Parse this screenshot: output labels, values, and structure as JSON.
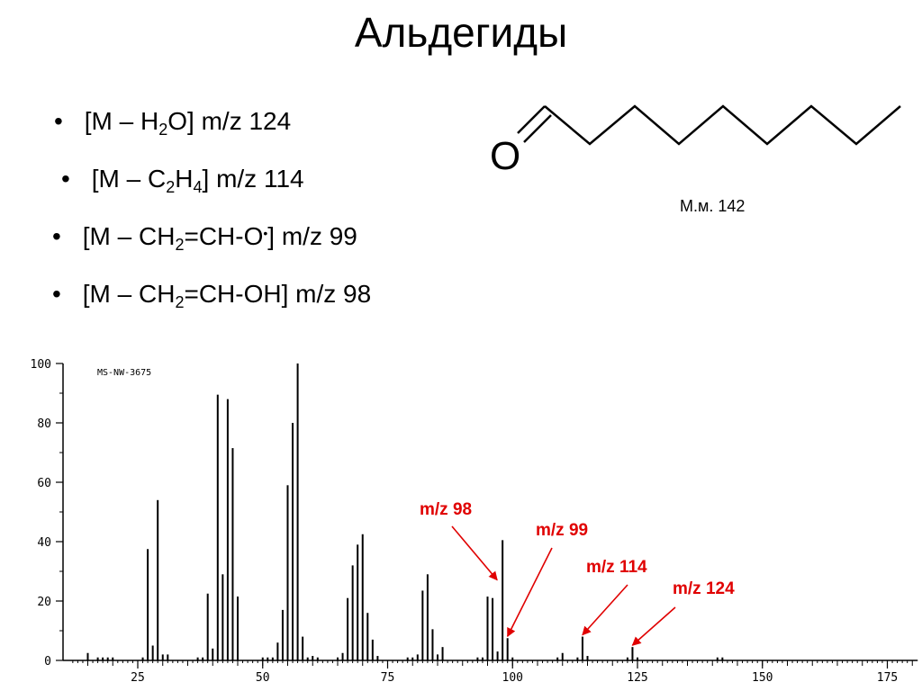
{
  "title": "Альдегиды",
  "bullets": [
    {
      "bullet": "•",
      "parts": [
        "[M – H",
        "2",
        "O] m/z 124"
      ]
    },
    {
      "bullet": "•",
      "parts": [
        "[M – C",
        "2",
        "H",
        "4",
        "] m/z 114"
      ]
    },
    {
      "bullet": "•",
      "parts": [
        "[M – CH",
        "2",
        "=CH-O",
        "•",
        "] m/z 99"
      ]
    },
    {
      "bullet": "•",
      "parts": [
        "[M – CH",
        "2",
        "=CH-OH] m/z 98"
      ]
    }
  ],
  "molecule": {
    "atom_label": "O",
    "molar_mass": "М.м. 142"
  },
  "chart_data": {
    "type": "bar",
    "subtitle": "MS-NW-3675",
    "xlim": [
      12,
      180
    ],
    "ylim": [
      0,
      100
    ],
    "xticks": [
      25,
      50,
      75,
      100,
      125,
      150,
      175
    ],
    "yticks": [
      0,
      20,
      40,
      60,
      80,
      100
    ],
    "grid": false,
    "x": [
      15,
      17,
      18,
      19,
      20,
      26,
      27,
      28,
      29,
      30,
      31,
      37,
      38,
      39,
      40,
      41,
      42,
      43,
      44,
      45,
      50,
      51,
      52,
      53,
      54,
      55,
      56,
      57,
      58,
      59,
      60,
      61,
      65,
      66,
      67,
      68,
      69,
      70,
      71,
      72,
      73,
      79,
      80,
      81,
      82,
      83,
      84,
      85,
      86,
      93,
      94,
      95,
      96,
      97,
      98,
      99,
      100,
      109,
      110,
      113,
      114,
      115,
      123,
      124,
      125,
      141,
      142
    ],
    "values": [
      2.5,
      1,
      1,
      1,
      1,
      1,
      37.5,
      5,
      54,
      2,
      2,
      1,
      1,
      22.5,
      4,
      89.5,
      29,
      88,
      71.5,
      21.5,
      1,
      1,
      1,
      6,
      17,
      59,
      80,
      100,
      8,
      1,
      1.5,
      1,
      1,
      2.5,
      21,
      32,
      39,
      42.5,
      16,
      7,
      1.5,
      1,
      1,
      2,
      23.5,
      29,
      10.5,
      2,
      4.5,
      1,
      1,
      21.5,
      21,
      3,
      40.5,
      7.5,
      1,
      1,
      2.5,
      1,
      8,
      1.5,
      1,
      4.5,
      1,
      1,
      1
    ],
    "annotations": [
      {
        "text": "m/z 98",
        "x": 98,
        "y": 28
      },
      {
        "text": "m/z 99",
        "x": 99,
        "y": 7.5
      },
      {
        "text": "m/z 114",
        "x": 114,
        "y": 8
      },
      {
        "text": "m/z 124",
        "x": 124,
        "y": 4.5
      }
    ]
  }
}
